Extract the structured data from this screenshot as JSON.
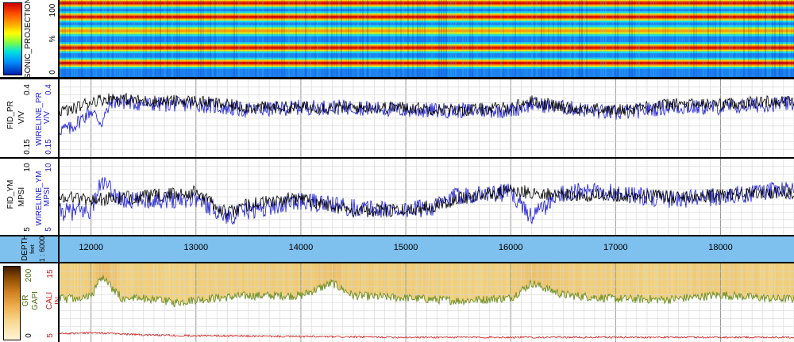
{
  "tracks": {
    "sonic": {
      "label": "SONIC_PROJECTION",
      "scale_top": "100",
      "scale_unit": "%",
      "scale_bottom": "0"
    },
    "pr": {
      "curve1": "FID_PR",
      "unit1": "V/V",
      "curve2": "WIRELINE_PR",
      "unit2": "V/V",
      "scale_top": "0.4",
      "scale_bottom": "0.15"
    },
    "ym": {
      "curve1": "FID_YM",
      "unit1": "MPSI",
      "curve2": "WIRELINE_YM",
      "unit2": "MPSI",
      "scale_top": "10",
      "scale_bottom": "5"
    },
    "depth": {
      "label": "DEPTH",
      "unit": "feet",
      "scale": "1 : 6000"
    },
    "gr": {
      "curve1": "GR",
      "unit1": "GAPI",
      "curve2": "CALI",
      "unit2": "IN",
      "gr_top": "200",
      "gr_bottom": "0",
      "cali_top": "15",
      "cali_bottom": "5"
    }
  },
  "colors": {
    "fid_curve": "#000000",
    "wireline_curve": "#1a1ad0",
    "gr_curve": "#6b8e23",
    "cali_curve": "#d01818",
    "depth_band": "#7ec0ee",
    "gr_fill": "#f3d98a"
  },
  "chart_data": [
    {
      "type": "heatmap",
      "name": "SONIC_PROJECTION",
      "ylabel": "%",
      "ylim": [
        0,
        100
      ],
      "xlim": [
        11700,
        18700
      ],
      "bands_percent": [
        {
          "level": 96,
          "value": "high"
        },
        {
          "level": 78,
          "value": "high"
        },
        {
          "level": 60,
          "value": "medium"
        },
        {
          "level": 38,
          "value": "high"
        },
        {
          "level": 18,
          "value": "high"
        }
      ]
    },
    {
      "type": "line",
      "xlim": [
        11700,
        18700
      ],
      "ylim": [
        0.15,
        0.4
      ],
      "series": [
        {
          "name": "FID_PR",
          "color": "#000000",
          "x": [
            11800,
            12000,
            12200,
            12500,
            13000,
            13500,
            14000,
            14500,
            15000,
            15500,
            16000,
            16200,
            16500,
            17000,
            17500,
            18000,
            18500
          ],
          "values": [
            0.3,
            0.33,
            0.34,
            0.33,
            0.33,
            0.31,
            0.31,
            0.31,
            0.31,
            0.3,
            0.31,
            0.33,
            0.31,
            0.3,
            0.32,
            0.32,
            0.33
          ]
        },
        {
          "name": "WIRELINE_PR",
          "color": "#1a1ad0",
          "x": [
            11800,
            12000,
            12100,
            12200,
            12500,
            13000,
            13500,
            14000,
            14500,
            15000,
            15500,
            16000,
            16200,
            16500,
            17000,
            17500,
            18000,
            18500
          ],
          "values": [
            0.24,
            0.3,
            0.26,
            0.33,
            0.32,
            0.32,
            0.3,
            0.31,
            0.31,
            0.3,
            0.3,
            0.3,
            0.32,
            0.31,
            0.29,
            0.31,
            0.31,
            0.32
          ]
        }
      ]
    },
    {
      "type": "line",
      "xlim": [
        11700,
        18700
      ],
      "ylim": [
        5,
        10
      ],
      "series": [
        {
          "name": "FID_YM",
          "color": "#000000",
          "x": [
            11800,
            12000,
            12500,
            13000,
            13300,
            13500,
            14000,
            14500,
            15000,
            15300,
            15500,
            16000,
            16500,
            17000,
            17500,
            18000,
            18500
          ],
          "values": [
            7.5,
            7.3,
            7.5,
            7.8,
            6.4,
            7.0,
            7.4,
            6.6,
            6.6,
            7.0,
            7.4,
            7.9,
            7.6,
            7.6,
            7.5,
            7.6,
            7.8
          ]
        },
        {
          "name": "WIRELINE_YM",
          "color": "#1a1ad0",
          "x": [
            11800,
            12000,
            12100,
            12300,
            12500,
            13000,
            13300,
            13500,
            14000,
            14500,
            15000,
            15300,
            15500,
            16000,
            16200,
            16500,
            17000,
            17500,
            18000,
            18500
          ],
          "values": [
            6.5,
            6.6,
            8.5,
            7.2,
            7.3,
            7.4,
            6.2,
            6.6,
            7.2,
            6.8,
            6.6,
            6.9,
            7.6,
            7.8,
            6.2,
            7.8,
            7.8,
            7.3,
            7.5,
            7.9
          ]
        }
      ]
    },
    {
      "type": "line",
      "name": "DEPTH",
      "x_ticks": [
        12000,
        13000,
        14000,
        15000,
        16000,
        17000,
        18000
      ],
      "xlim": [
        11700,
        18700
      ]
    },
    {
      "type": "line",
      "xlim": [
        11700,
        18700
      ],
      "series": [
        {
          "name": "GR",
          "color": "#6b8e23",
          "ylim": [
            0,
            200
          ],
          "x": [
            11800,
            12000,
            12100,
            12300,
            12500,
            12800,
            13000,
            13500,
            14000,
            14300,
            14500,
            15000,
            15500,
            16000,
            16200,
            16500,
            17000,
            17500,
            18000,
            18500
          ],
          "values": [
            110,
            115,
            165,
            110,
            112,
            100,
            108,
            118,
            118,
            150,
            118,
            112,
            105,
            112,
            150,
            120,
            110,
            108,
            120,
            110
          ]
        },
        {
          "name": "CALI",
          "color": "#d01818",
          "ylim": [
            5,
            15
          ],
          "x": [
            11800,
            12000,
            12500,
            13000,
            14000,
            15000,
            16000,
            17000,
            18000,
            18500
          ],
          "values": [
            6.1,
            6.2,
            5.9,
            5.8,
            5.7,
            5.6,
            5.6,
            5.6,
            5.6,
            5.6
          ]
        }
      ]
    }
  ]
}
